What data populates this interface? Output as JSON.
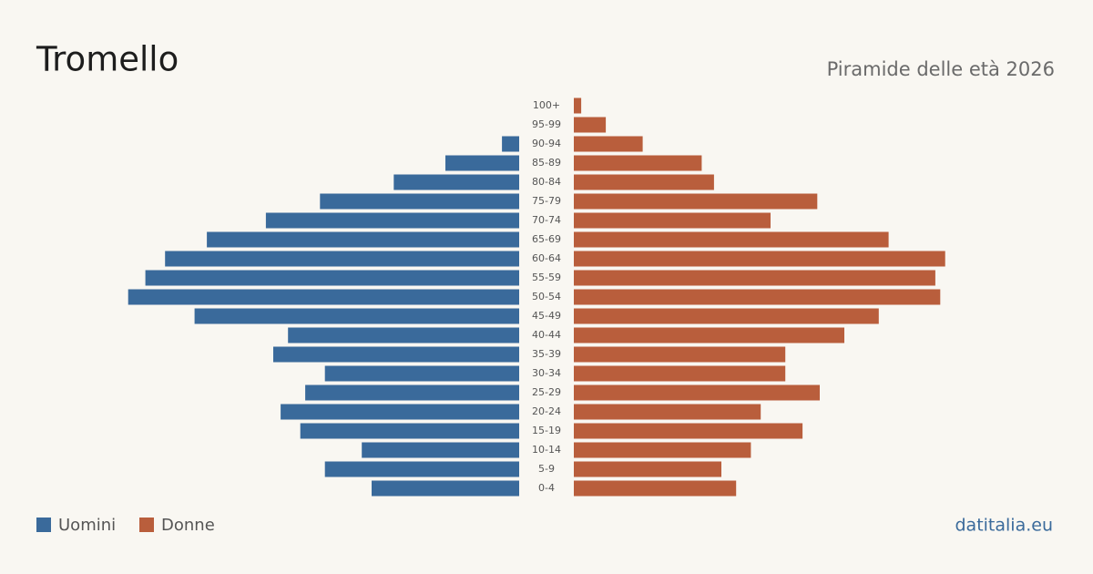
{
  "chart_data": {
    "type": "pyramid",
    "title": "Tromello",
    "subtitle": "Piramide delle età 2026",
    "source": "datitalia.eu",
    "categories": [
      "100+",
      "95-99",
      "90-94",
      "85-89",
      "80-84",
      "75-79",
      "70-74",
      "65-69",
      "60-64",
      "55-59",
      "50-54",
      "45-49",
      "40-44",
      "35-39",
      "30-34",
      "25-29",
      "20-24",
      "15-19",
      "10-14",
      "5-9",
      "0-4"
    ],
    "series": [
      {
        "name": "Uomini",
        "color": "#3a6a9b",
        "values": [
          0,
          0,
          7,
          30,
          51,
          81,
          103,
          127,
          144,
          152,
          159,
          132,
          94,
          100,
          79,
          87,
          97,
          89,
          64,
          79,
          60
        ]
      },
      {
        "name": "Donne",
        "color": "#b95e3c",
        "values": [
          3,
          13,
          28,
          52,
          57,
          99,
          80,
          128,
          151,
          147,
          149,
          124,
          110,
          86,
          86,
          100,
          76,
          93,
          72,
          60,
          66
        ]
      }
    ]
  }
}
